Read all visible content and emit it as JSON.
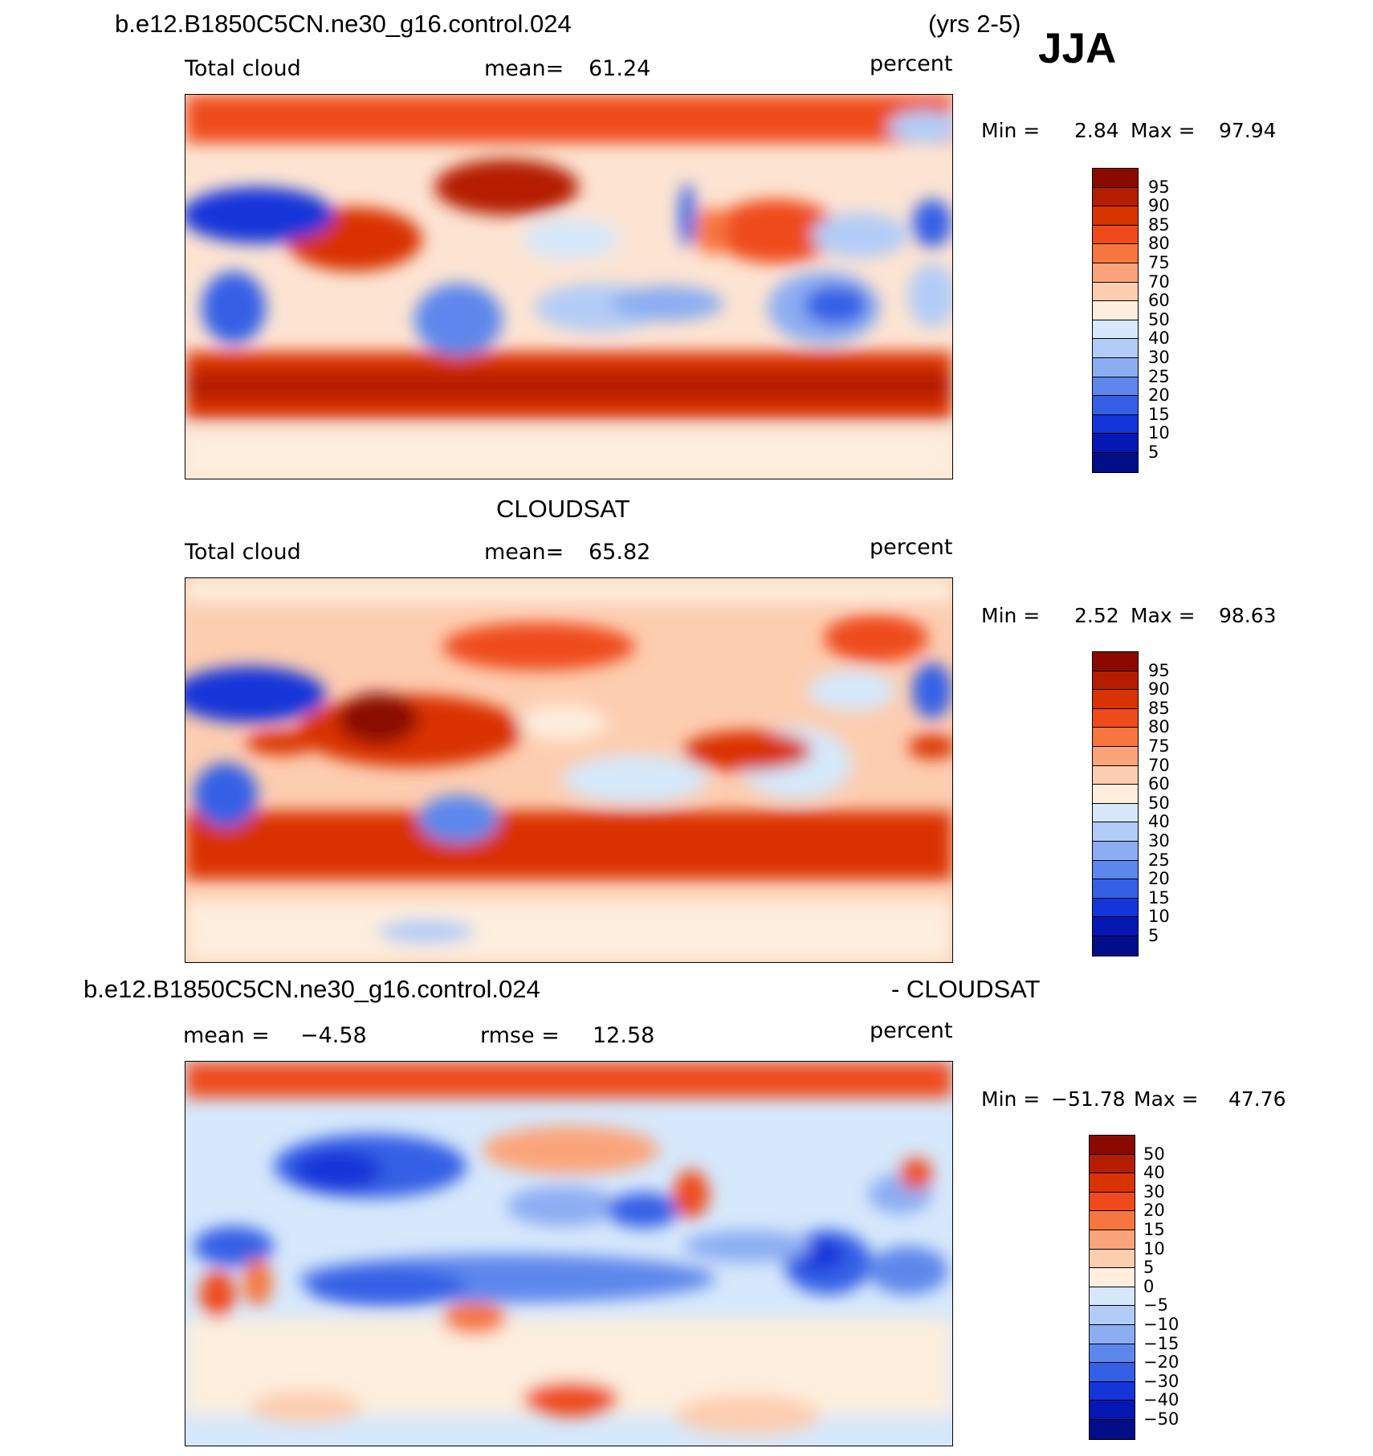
{
  "header": {
    "case_name": "b.e12.B1850C5CN.ne30_g16.control.024",
    "years": "(yrs 2-5)",
    "season": "JJA"
  },
  "panels": [
    {
      "id": "model",
      "variable": "Total cloud",
      "stat_label": "mean=",
      "stat_value": "61.24",
      "units": "percent",
      "min_label": "Min =",
      "min_value": "2.84",
      "max_label": "Max =",
      "max_value": "97.94"
    },
    {
      "id": "obs",
      "title": "CLOUDSAT",
      "variable": "Total cloud",
      "stat_label": "mean=",
      "stat_value": "65.82",
      "units": "percent",
      "min_label": "Min =",
      "min_value": "2.52",
      "max_label": "Max =",
      "max_value": "98.63"
    },
    {
      "id": "diff",
      "title_left": "b.e12.B1850C5CN.ne30_g16.control.024",
      "title_right": "- CLOUDSAT",
      "mean_label": "mean =",
      "mean_value": "−4.58",
      "rmse_label": "rmse =",
      "rmse_value": "12.58",
      "units": "percent",
      "min_label": "Min =",
      "min_value": "−51.78",
      "max_label": "Max =",
      "max_value": "47.76"
    }
  ],
  "colorbars": {
    "absolute": {
      "labels": [
        "95",
        "90",
        "85",
        "80",
        "75",
        "70",
        "60",
        "50",
        "40",
        "30",
        "25",
        "20",
        "15",
        "10",
        "5"
      ],
      "colors": [
        "#8b0a00",
        "#b51d00",
        "#d93300",
        "#ef4b1a",
        "#f7763f",
        "#fba47a",
        "#fdcdb0",
        "#fdeedd",
        "#d6e8fb",
        "#b2ccf7",
        "#8cadf2",
        "#5d87ec",
        "#3560e6",
        "#1335d9",
        "#0518b4",
        "#020e88"
      ]
    },
    "difference": {
      "labels": [
        "50",
        "40",
        "30",
        "20",
        "15",
        "10",
        "5",
        "0",
        "−5",
        "−10",
        "−15",
        "−20",
        "−30",
        "−40",
        "−50"
      ],
      "colors": [
        "#8b0a00",
        "#b51d00",
        "#d93300",
        "#ef4b1a",
        "#f7763f",
        "#fba47a",
        "#fdcdb0",
        "#fdeedd",
        "#d6e8fb",
        "#b2ccf7",
        "#8cadf2",
        "#5d87ec",
        "#3560e6",
        "#1335d9",
        "#0518b4",
        "#020e88"
      ]
    }
  }
}
